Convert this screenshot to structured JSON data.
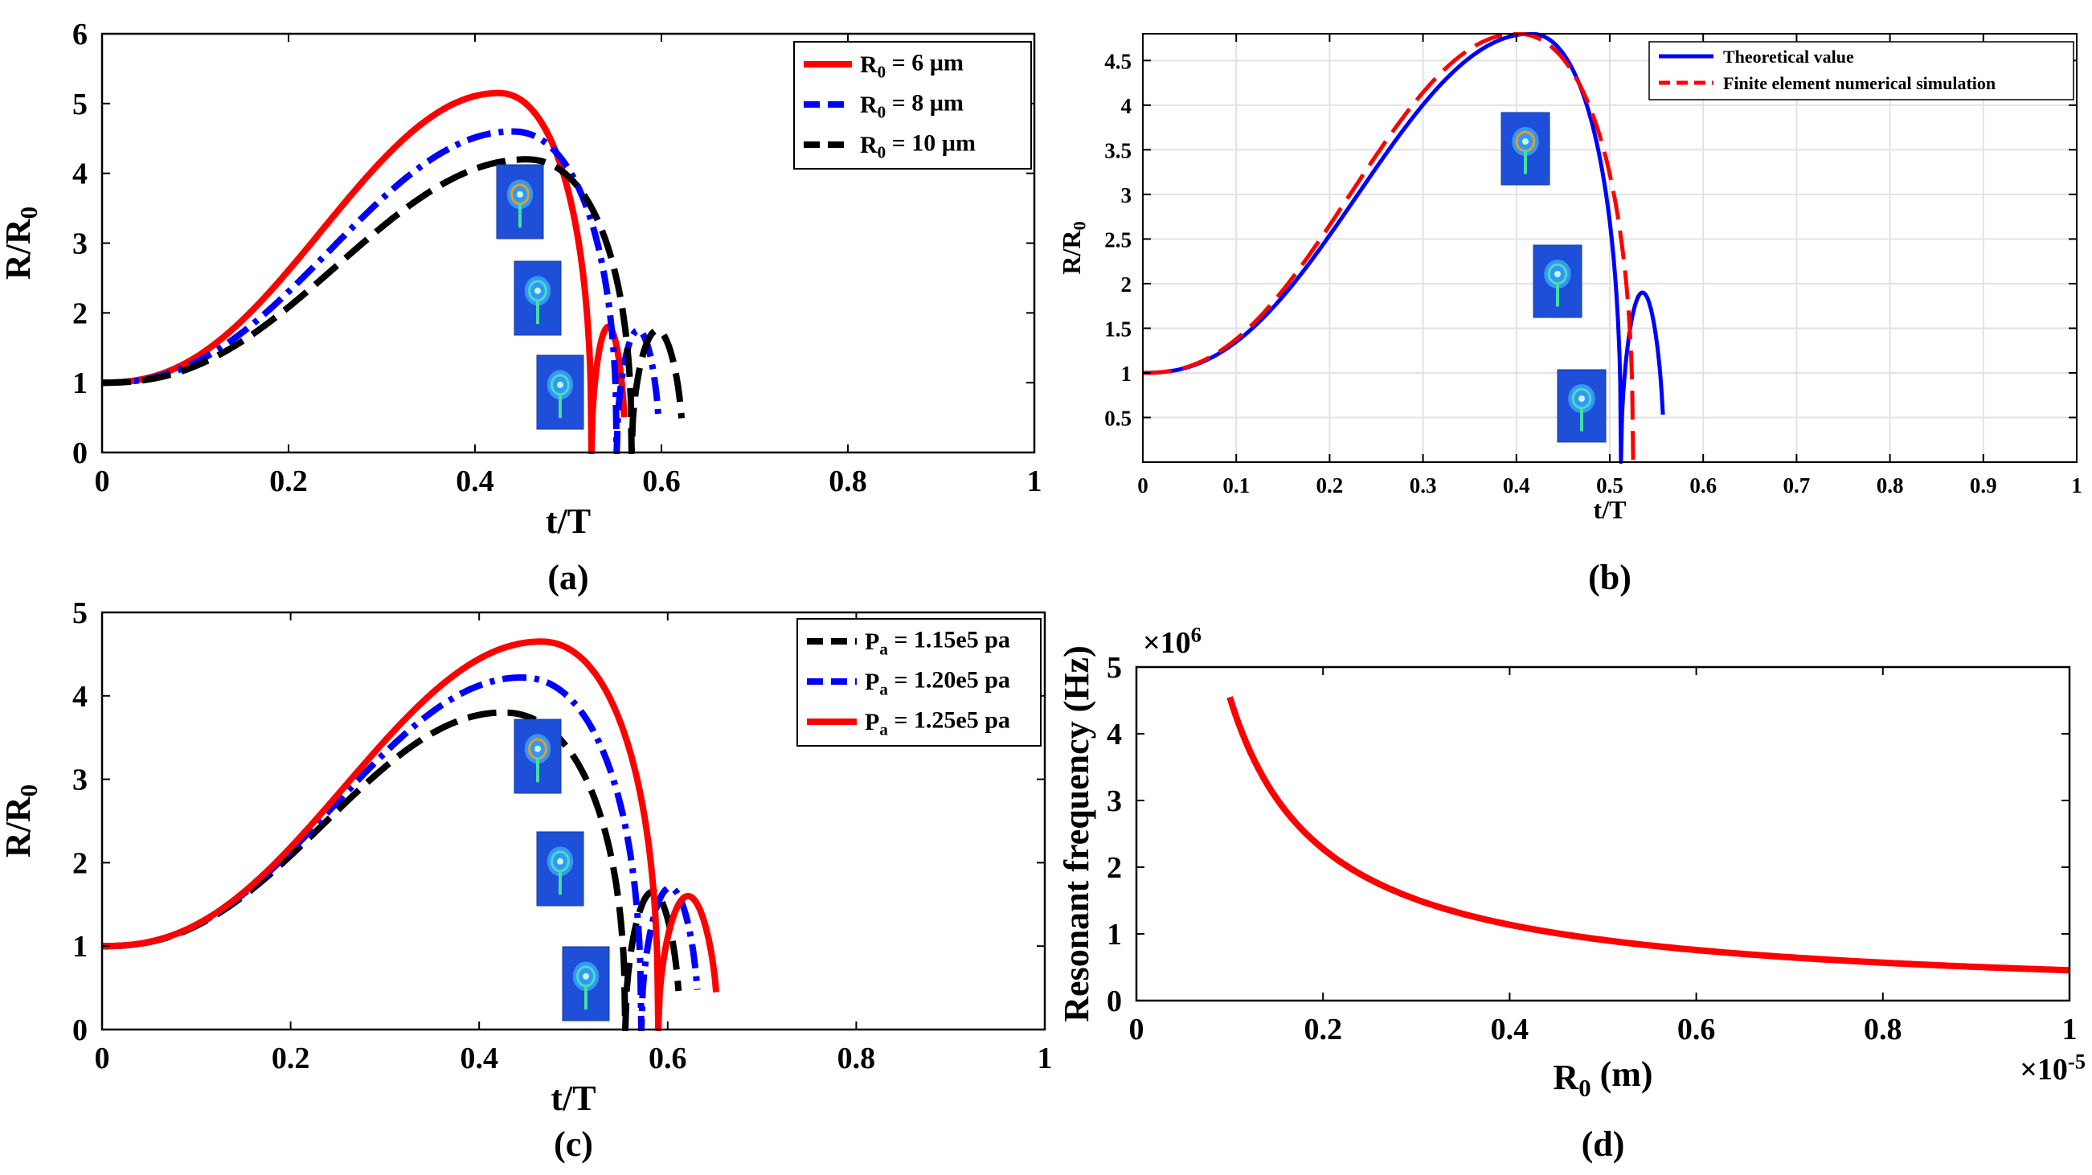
{
  "chart_data": [
    {
      "type": "line",
      "panel_label": "(a)",
      "xlabel": "t/T",
      "ylabel": "R/R0",
      "xlim": [
        0,
        1
      ],
      "ylim": [
        0,
        6
      ],
      "xticks": [
        "0",
        "0.2",
        "0.4",
        "0.6",
        "0.8",
        "1"
      ],
      "yticks": [
        "0",
        "1",
        "2",
        "3",
        "4",
        "5",
        "6"
      ],
      "grid": false,
      "legend": "top-right",
      "series": [
        {
          "name": "R0 = 6 µm",
          "color": "#ff0000",
          "dash": "solid",
          "peak": [
            0.425,
            5.15
          ],
          "collapse": 0.525,
          "osc_start": 0.545,
          "osc_period": 0.036,
          "osc_amp": 1.8,
          "osc_end_amp": 1.15
        },
        {
          "name": "R0 = 8 µm",
          "color": "#0000ff",
          "dash": "dashdot",
          "peak": [
            0.44,
            4.6
          ],
          "collapse": 0.552,
          "osc_start": 0.57,
          "osc_period": 0.046,
          "osc_amp": 1.75,
          "osc_end_amp": 1.15
        },
        {
          "name": "R0 = 10 µm",
          "color": "#000000",
          "dash": "dashed",
          "peak": [
            0.455,
            4.2
          ],
          "collapse": 0.568,
          "osc_start": 0.59,
          "osc_period": 0.055,
          "osc_amp": 1.75,
          "osc_end_amp": 1.2
        }
      ]
    },
    {
      "type": "line",
      "panel_label": "(b)",
      "xlabel": "t/T",
      "ylabel": "R/R0",
      "xlim": [
        0,
        1
      ],
      "ylim": [
        0,
        4.8
      ],
      "xticks": [
        "0",
        "0.1",
        "0.2",
        "0.3",
        "0.4",
        "0.5",
        "0.6",
        "0.7",
        "0.8",
        "0.9",
        "1"
      ],
      "yticks": [
        "0.5",
        "1",
        "1.5",
        "2",
        "2.5",
        "3",
        "3.5",
        "4",
        "4.5"
      ],
      "grid": true,
      "legend": "top-right",
      "series": [
        {
          "name": "Theoretical value",
          "color": "#0000ff",
          "dash": "solid",
          "peak": [
            0.415,
            4.8
          ],
          "collapse": 0.512,
          "osc_start": 0.52,
          "osc_period": 0.046,
          "osc_amp": 1.9,
          "osc_end_amp": 1.08
        },
        {
          "name": "Finite element numerical simulation",
          "color": "#ff0000",
          "dash": "dashed",
          "peak": [
            0.4,
            4.8
          ],
          "collapse": 0.525,
          "osc_start": null,
          "osc_period": null,
          "osc_amp": null,
          "osc_end_amp": null
        }
      ]
    },
    {
      "type": "line",
      "panel_label": "(c)",
      "xlabel": "t/T",
      "ylabel": "R/R0",
      "xlim": [
        0,
        1
      ],
      "ylim": [
        0,
        5
      ],
      "xticks": [
        "0",
        "0.2",
        "0.4",
        "0.6",
        "0.8",
        "1"
      ],
      "yticks": [
        "0",
        "1",
        "2",
        "3",
        "4",
        "5"
      ],
      "grid": false,
      "legend": "top-right",
      "series": [
        {
          "name": "Pa = 1.15e5 pa",
          "color": "#000000",
          "dash": "dashed",
          "peak": [
            0.425,
            3.8
          ],
          "collapse": 0.555,
          "osc_start": 0.575,
          "osc_period": 0.058,
          "osc_amp": 1.65,
          "osc_end_amp": 1.25
        },
        {
          "name": "Pa = 1.20e5 pa",
          "color": "#0000ff",
          "dash": "dashdot",
          "peak": [
            0.445,
            4.22
          ],
          "collapse": 0.572,
          "osc_start": 0.59,
          "osc_period": 0.061,
          "osc_amp": 1.7,
          "osc_end_amp": 1.2
        },
        {
          "name": "Pa = 1.25e5 pa",
          "color": "#ff0000",
          "dash": "solid",
          "peak": [
            0.465,
            4.65
          ],
          "collapse": 0.59,
          "osc_start": 0.605,
          "osc_period": 0.063,
          "osc_amp": 1.6,
          "osc_end_amp": 1.2
        }
      ]
    },
    {
      "type": "line",
      "panel_label": "(d)",
      "xlabel": "R0 (m)",
      "ylabel": "Resonant frequency (Hz)",
      "x_multiplier": "×10-5",
      "y_multiplier": "×106",
      "xlim": [
        0,
        1
      ],
      "ylim": [
        0,
        5
      ],
      "xticks": [
        "0",
        "0.2",
        "0.4",
        "0.6",
        "0.8",
        "1"
      ],
      "yticks": [
        "0",
        "1",
        "2",
        "3",
        "4",
        "5"
      ],
      "grid": false,
      "series": [
        {
          "name": "",
          "color": "#ff0000",
          "dash": "solid",
          "x": [
            0.1,
            0.12,
            0.15,
            0.2,
            0.25,
            0.3,
            0.4,
            0.5,
            0.6,
            0.7,
            0.8,
            0.9,
            1.0
          ],
          "y": [
            4.72,
            3.95,
            3.15,
            2.28,
            1.8,
            1.5,
            1.12,
            0.9,
            0.75,
            0.64,
            0.56,
            0.5,
            0.45
          ]
        }
      ]
    }
  ]
}
